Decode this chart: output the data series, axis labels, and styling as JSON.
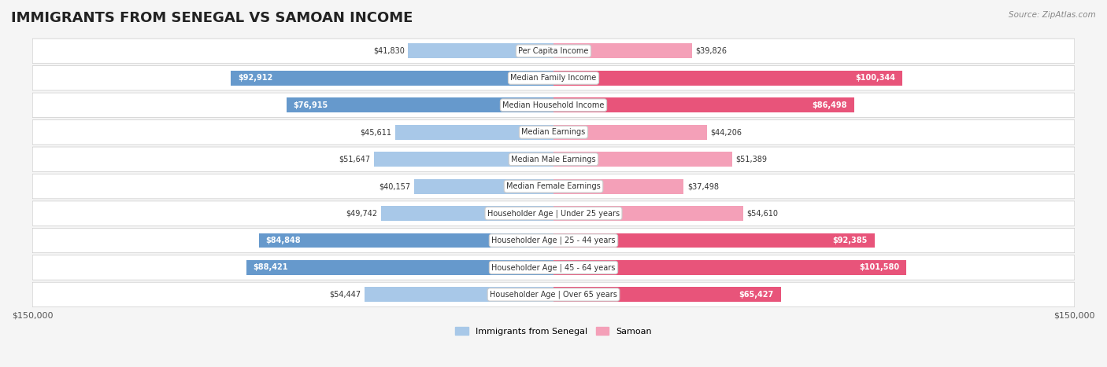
{
  "title": "IMMIGRANTS FROM SENEGAL VS SAMOAN INCOME",
  "source": "Source: ZipAtlas.com",
  "categories": [
    "Per Capita Income",
    "Median Family Income",
    "Median Household Income",
    "Median Earnings",
    "Median Male Earnings",
    "Median Female Earnings",
    "Householder Age | Under 25 years",
    "Householder Age | 25 - 44 years",
    "Householder Age | 45 - 64 years",
    "Householder Age | Over 65 years"
  ],
  "senegal_values": [
    41830,
    92912,
    76915,
    45611,
    51647,
    40157,
    49742,
    84848,
    88421,
    54447
  ],
  "samoan_values": [
    39826,
    100344,
    86498,
    44206,
    51389,
    37498,
    54610,
    92385,
    101580,
    65427
  ],
  "senegal_color_light": "#a8c8e8",
  "senegal_color_dark": "#6699cc",
  "samoan_color_light": "#f4a0b8",
  "samoan_color_dark": "#e8547a",
  "max_value": 150000,
  "bg_color": "#f5f5f5",
  "row_bg": "#ffffff",
  "label_bg": "#ffffff",
  "title_fontsize": 13,
  "tick_label": "$150,000"
}
